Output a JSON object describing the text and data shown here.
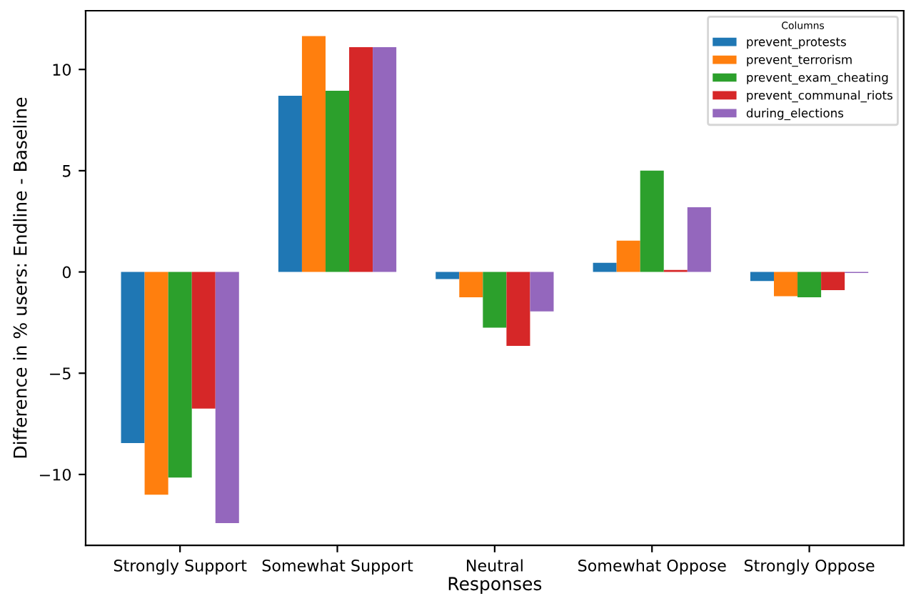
{
  "chart_data": {
    "type": "bar",
    "xlabel": "Responses",
    "ylabel": "Difference in % users: Endline - Baseline",
    "legend_title": "Columns",
    "categories": [
      "Strongly Support",
      "Somewhat Support",
      "Neutral",
      "Somewhat Oppose",
      "Strongly Oppose"
    ],
    "series": [
      {
        "name": "prevent_protests",
        "color": "#1f77b4",
        "values": [
          -8.45,
          8.7,
          -0.35,
          0.45,
          -0.45
        ]
      },
      {
        "name": "prevent_terrorism",
        "color": "#ff7f0e",
        "values": [
          -11.0,
          11.65,
          -1.25,
          1.55,
          -1.2
        ]
      },
      {
        "name": "prevent_exam_cheating",
        "color": "#2ca02c",
        "values": [
          -10.15,
          8.95,
          -2.75,
          5.0,
          -1.25
        ]
      },
      {
        "name": "prevent_communal_riots",
        "color": "#d62728",
        "values": [
          -6.75,
          11.1,
          -3.65,
          0.1,
          -0.9
        ]
      },
      {
        "name": "during_elections",
        "color": "#9467bd",
        "values": [
          -12.4,
          11.1,
          -1.95,
          3.2,
          -0.05
        ]
      }
    ],
    "ylim": [
      -13.5,
      12.9
    ],
    "yticks": [
      {
        "value": -10,
        "label": "−10"
      },
      {
        "value": -5,
        "label": "−5"
      },
      0,
      5,
      10
    ],
    "grid": false,
    "legend": "top right"
  }
}
